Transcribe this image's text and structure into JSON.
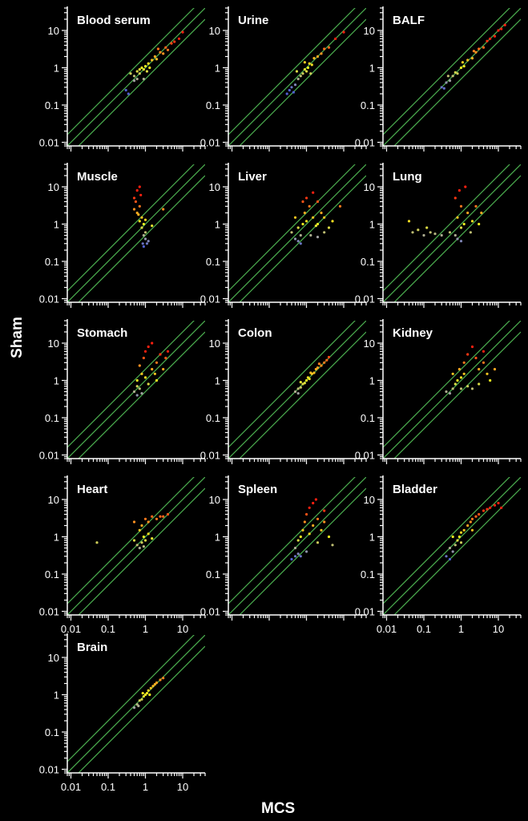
{
  "chart_data": {
    "type": "scatter",
    "layout": "small-multiples 3 columns",
    "xlabel": "MCS",
    "ylabel": "Sham",
    "xscale": "log",
    "yscale": "log",
    "xlim": [
      0.008,
      40
    ],
    "ylim": [
      0.008,
      40
    ],
    "x_tick_labels": [
      "0.01",
      "0.1",
      "1",
      "10"
    ],
    "y_tick_labels": [
      "0.01",
      "0.1",
      "1",
      "10"
    ],
    "reference_lines": [
      {
        "slope_factor": 2
      },
      {
        "slope_factor": 1
      },
      {
        "slope_factor": 0.5
      }
    ],
    "reference_line_color": "#4caf50",
    "colormap": [
      "#5060d0",
      "#a0a0a0",
      "#f0f020",
      "#ff9020",
      "#ff2010"
    ],
    "grid": false,
    "panels": [
      {
        "title": "Blood serum",
        "points": [
          [
            0.5,
            0.6
          ],
          [
            0.6,
            0.8
          ],
          [
            0.7,
            0.7
          ],
          [
            0.8,
            1.0
          ],
          [
            0.9,
            0.9
          ],
          [
            1.0,
            1.1
          ],
          [
            0.6,
            0.5
          ],
          [
            0.7,
            0.9
          ],
          [
            1.2,
            1.3
          ],
          [
            1.5,
            1.6
          ],
          [
            1.3,
            1.0
          ],
          [
            1.8,
            2.0
          ],
          [
            2.0,
            1.7
          ],
          [
            2.5,
            2.6
          ],
          [
            3.0,
            2.4
          ],
          [
            3.5,
            3.5
          ],
          [
            4,
            3
          ],
          [
            5,
            4.5
          ],
          [
            6,
            5
          ],
          [
            8,
            6
          ],
          [
            10,
            9
          ],
          [
            0.3,
            0.25
          ],
          [
            0.35,
            0.2
          ],
          [
            0.5,
            0.45
          ],
          [
            0.9,
            0.5
          ],
          [
            1.1,
            0.8
          ],
          [
            2.2,
            3.2
          ],
          [
            0.4,
            0.7
          ]
        ]
      },
      {
        "title": "Urine",
        "points": [
          [
            0.3,
            0.2
          ],
          [
            0.35,
            0.25
          ],
          [
            0.4,
            0.3
          ],
          [
            0.45,
            0.22
          ],
          [
            0.5,
            0.35
          ],
          [
            0.6,
            0.5
          ],
          [
            0.7,
            0.6
          ],
          [
            0.8,
            0.7
          ],
          [
            0.9,
            0.9
          ],
          [
            1.0,
            0.8
          ],
          [
            1.1,
            1.0
          ],
          [
            1.2,
            1.3
          ],
          [
            1.4,
            1.2
          ],
          [
            1.6,
            1.8
          ],
          [
            2.0,
            2.0
          ],
          [
            2.5,
            2.4
          ],
          [
            3,
            3.2
          ],
          [
            4,
            3.5
          ],
          [
            6,
            6
          ],
          [
            10,
            9
          ],
          [
            0.55,
            0.8
          ],
          [
            0.9,
            1.4
          ],
          [
            1.3,
            0.7
          ]
        ]
      },
      {
        "title": "BALF",
        "points": [
          [
            0.3,
            0.3
          ],
          [
            0.35,
            0.28
          ],
          [
            0.4,
            0.4
          ],
          [
            0.5,
            0.45
          ],
          [
            0.6,
            0.6
          ],
          [
            0.7,
            0.75
          ],
          [
            0.8,
            0.7
          ],
          [
            1.0,
            1.0
          ],
          [
            1.2,
            1.1
          ],
          [
            1.5,
            1.6
          ],
          [
            2,
            1.8
          ],
          [
            2.5,
            2.6
          ],
          [
            3,
            3.2
          ],
          [
            4,
            3.5
          ],
          [
            5,
            5.2
          ],
          [
            6,
            6
          ],
          [
            8,
            7
          ],
          [
            10,
            10
          ],
          [
            12,
            11
          ],
          [
            15,
            14
          ],
          [
            0.45,
            0.6
          ],
          [
            1.1,
            1.4
          ],
          [
            2.2,
            2.8
          ]
        ]
      },
      {
        "title": "Muscle",
        "points": [
          [
            0.5,
            5
          ],
          [
            0.6,
            8
          ],
          [
            0.7,
            3
          ],
          [
            0.6,
            2
          ],
          [
            0.8,
            1.5
          ],
          [
            0.7,
            1.2
          ],
          [
            0.9,
            1.0
          ],
          [
            0.8,
            0.8
          ],
          [
            1.0,
            0.6
          ],
          [
            0.9,
            0.5
          ],
          [
            1.0,
            0.4
          ],
          [
            1.1,
            0.3
          ],
          [
            0.9,
            0.25
          ],
          [
            1.2,
            0.35
          ],
          [
            0.5,
            2.5
          ],
          [
            0.55,
            4
          ],
          [
            0.75,
            6
          ],
          [
            0.65,
            1.8
          ],
          [
            1.0,
            1.3
          ],
          [
            1.5,
            0.9
          ],
          [
            3,
            2.5
          ],
          [
            0.85,
            0.3
          ],
          [
            0.7,
            10
          ]
        ]
      },
      {
        "title": "Liver",
        "points": [
          [
            0.5,
            0.4
          ],
          [
            0.6,
            0.35
          ],
          [
            0.7,
            0.5
          ],
          [
            0.6,
            0.8
          ],
          [
            0.8,
            1.0
          ],
          [
            1.0,
            1.2
          ],
          [
            0.9,
            2
          ],
          [
            1.2,
            3
          ],
          [
            1.0,
            5
          ],
          [
            1.5,
            7
          ],
          [
            0.8,
            4
          ],
          [
            1.5,
            1.5
          ],
          [
            2,
            1.0
          ],
          [
            2.5,
            2
          ],
          [
            3,
            1.5
          ],
          [
            4,
            0.8
          ],
          [
            5,
            1.2
          ],
          [
            0.5,
            1.5
          ],
          [
            0.4,
            0.6
          ],
          [
            1.3,
            0.5
          ],
          [
            2,
            0.45
          ],
          [
            3,
            0.6
          ],
          [
            2,
            4
          ],
          [
            8,
            3
          ],
          [
            1.8,
            0.9
          ],
          [
            0.7,
            0.3
          ]
        ]
      },
      {
        "title": "Lung",
        "points": [
          [
            0.04,
            1.2
          ],
          [
            0.05,
            0.6
          ],
          [
            0.07,
            0.7
          ],
          [
            0.1,
            0.5
          ],
          [
            0.12,
            0.8
          ],
          [
            0.15,
            0.6
          ],
          [
            0.2,
            0.55
          ],
          [
            0.3,
            0.5
          ],
          [
            0.5,
            0.6
          ],
          [
            0.7,
            0.5
          ],
          [
            0.8,
            0.4
          ],
          [
            1.0,
            0.35
          ],
          [
            1.0,
            0.8
          ],
          [
            1.2,
            1.0
          ],
          [
            0.8,
            1.5
          ],
          [
            1.0,
            3
          ],
          [
            0.7,
            5
          ],
          [
            0.9,
            8
          ],
          [
            1.3,
            10
          ],
          [
            1.5,
            2
          ],
          [
            2,
            1.2
          ],
          [
            2.5,
            3
          ],
          [
            3,
            1.0
          ],
          [
            3.5,
            2
          ],
          [
            1.8,
            0.6
          ]
        ]
      },
      {
        "title": "Stomach",
        "points": [
          [
            0.5,
            0.5
          ],
          [
            0.6,
            0.4
          ],
          [
            0.7,
            0.6
          ],
          [
            0.6,
            1.0
          ],
          [
            0.8,
            1.5
          ],
          [
            0.7,
            2.5
          ],
          [
            0.9,
            4
          ],
          [
            1.0,
            6
          ],
          [
            1.2,
            8
          ],
          [
            1.5,
            10
          ],
          [
            1.0,
            1.2
          ],
          [
            1.2,
            0.8
          ],
          [
            1.5,
            2
          ],
          [
            2,
            3
          ],
          [
            2.5,
            5
          ],
          [
            3,
            2
          ],
          [
            3.5,
            4
          ],
          [
            4,
            6
          ],
          [
            2,
            1.0
          ],
          [
            0.6,
            0.7
          ],
          [
            1.8,
            1.5
          ],
          [
            0.8,
            0.45
          ]
        ]
      },
      {
        "title": "Colon",
        "points": [
          [
            0.5,
            0.5
          ],
          [
            0.6,
            0.6
          ],
          [
            0.7,
            0.65
          ],
          [
            0.8,
            0.8
          ],
          [
            0.9,
            0.85
          ],
          [
            1.0,
            1.0
          ],
          [
            1.1,
            1.2
          ],
          [
            1.2,
            1.1
          ],
          [
            1.4,
            1.5
          ],
          [
            1.6,
            1.6
          ],
          [
            1.8,
            2.0
          ],
          [
            2,
            2.2
          ],
          [
            2.5,
            2.5
          ],
          [
            3,
            3
          ],
          [
            3.5,
            3.5
          ],
          [
            4,
            4.2
          ],
          [
            0.7,
            0.9
          ],
          [
            1.3,
            1.6
          ],
          [
            2.2,
            2.8
          ],
          [
            0.6,
            0.45
          ]
        ]
      },
      {
        "title": "Kidney",
        "points": [
          [
            0.4,
            0.5
          ],
          [
            0.5,
            0.45
          ],
          [
            0.6,
            0.6
          ],
          [
            0.7,
            0.8
          ],
          [
            0.8,
            1.0
          ],
          [
            1.0,
            1.2
          ],
          [
            1.2,
            1.5
          ],
          [
            0.9,
            2
          ],
          [
            1.2,
            3
          ],
          [
            1.5,
            5
          ],
          [
            2,
            8
          ],
          [
            2.5,
            4
          ],
          [
            3,
            2
          ],
          [
            4,
            3
          ],
          [
            5,
            1.5
          ],
          [
            6,
            1.0
          ],
          [
            8,
            2
          ],
          [
            3,
            0.8
          ],
          [
            2,
            0.6
          ],
          [
            1.5,
            0.7
          ],
          [
            1.0,
            0.6
          ],
          [
            0.6,
            1.5
          ],
          [
            4,
            6
          ]
        ]
      },
      {
        "title": "Heart",
        "points": [
          [
            0.05,
            0.7
          ],
          [
            0.5,
            0.8
          ],
          [
            0.6,
            0.6
          ],
          [
            0.7,
            0.5
          ],
          [
            0.8,
            0.7
          ],
          [
            0.9,
            1.0
          ],
          [
            1.0,
            0.8
          ],
          [
            0.7,
            1.5
          ],
          [
            0.8,
            2
          ],
          [
            1.0,
            3
          ],
          [
            1.2,
            2.5
          ],
          [
            1.5,
            3.5
          ],
          [
            2,
            3
          ],
          [
            2.5,
            3.5
          ],
          [
            3,
            3.5
          ],
          [
            4,
            4
          ],
          [
            1.2,
            1.2
          ],
          [
            1.5,
            0.9
          ],
          [
            0.5,
            2.5
          ],
          [
            0.9,
            0.55
          ]
        ]
      },
      {
        "title": "Spleen",
        "points": [
          [
            0.4,
            0.25
          ],
          [
            0.5,
            0.3
          ],
          [
            0.6,
            0.35
          ],
          [
            0.5,
            0.5
          ],
          [
            0.6,
            0.8
          ],
          [
            0.7,
            1.0
          ],
          [
            0.8,
            1.5
          ],
          [
            0.9,
            2.5
          ],
          [
            1.0,
            4
          ],
          [
            1.2,
            6
          ],
          [
            1.5,
            8
          ],
          [
            1.8,
            10
          ],
          [
            1.2,
            1.2
          ],
          [
            1.5,
            2
          ],
          [
            2,
            3
          ],
          [
            2.5,
            1.5
          ],
          [
            3,
            2.5
          ],
          [
            4,
            1.0
          ],
          [
            5,
            0.6
          ],
          [
            2,
            0.7
          ],
          [
            1.0,
            0.4
          ],
          [
            0.7,
            0.3
          ],
          [
            3,
            5
          ]
        ]
      },
      {
        "title": "Bladder",
        "points": [
          [
            0.4,
            0.3
          ],
          [
            0.5,
            0.25
          ],
          [
            0.6,
            0.4
          ],
          [
            0.5,
            0.5
          ],
          [
            0.7,
            0.6
          ],
          [
            0.8,
            0.8
          ],
          [
            0.9,
            1.0
          ],
          [
            1.0,
            1.3
          ],
          [
            1.2,
            1.5
          ],
          [
            1.5,
            2
          ],
          [
            1.8,
            2.5
          ],
          [
            2,
            3
          ],
          [
            2.5,
            3.5
          ],
          [
            3,
            4
          ],
          [
            4,
            5
          ],
          [
            5,
            5.5
          ],
          [
            6,
            6
          ],
          [
            8,
            7
          ],
          [
            10,
            8
          ],
          [
            12,
            6
          ],
          [
            1.0,
            0.7
          ],
          [
            2,
            1.5
          ],
          [
            0.6,
            1.0
          ]
        ]
      },
      {
        "title": "Brain",
        "points": [
          [
            0.5,
            0.45
          ],
          [
            0.6,
            0.55
          ],
          [
            0.7,
            0.7
          ],
          [
            0.8,
            0.75
          ],
          [
            0.9,
            0.9
          ],
          [
            1.0,
            1.0
          ],
          [
            1.1,
            1.1
          ],
          [
            1.2,
            1.3
          ],
          [
            1.4,
            1.5
          ],
          [
            1.6,
            1.7
          ],
          [
            1.8,
            1.9
          ],
          [
            2,
            2.1
          ],
          [
            2.5,
            2.5
          ],
          [
            3,
            2.8
          ],
          [
            0.65,
            0.5
          ],
          [
            1.3,
            1.0
          ],
          [
            0.85,
            1.1
          ]
        ]
      }
    ]
  }
}
